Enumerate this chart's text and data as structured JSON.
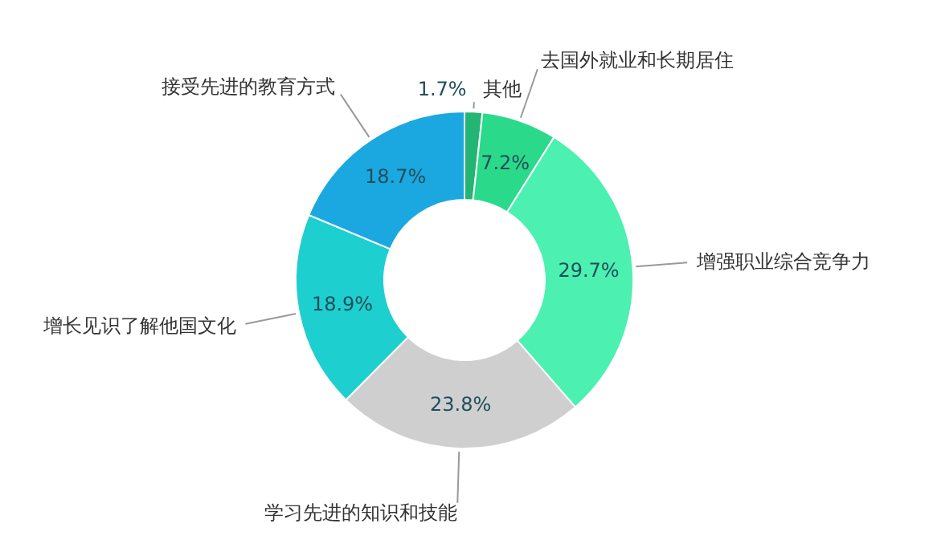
{
  "chart_data": {
    "type": "donut",
    "categories": [
      "其他",
      "去国外就业和长期居住",
      "增强职业综合竞争力",
      "学习先进的知识和技能",
      "增长见识了解他国文化",
      "接受先进的教育方式"
    ],
    "values": [
      1.7,
      7.2,
      29.7,
      23.8,
      18.9,
      18.7
    ],
    "value_labels": [
      "1.7%",
      "7.2%",
      "29.7%",
      "23.8%",
      "18.9%",
      "18.7%"
    ],
    "colors": [
      "#22b573",
      "#2bd98a",
      "#4cf0b0",
      "#cfcfcf",
      "#1ecfcf",
      "#1ba8e0"
    ]
  }
}
